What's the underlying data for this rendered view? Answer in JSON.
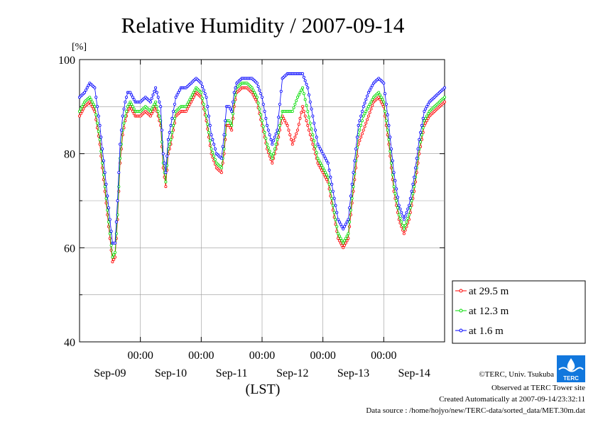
{
  "chart_data": {
    "type": "line",
    "title": "Relative Humidity / 2007-09-14",
    "ylabel": "[%]",
    "xlabel": "(LST)",
    "ylim": [
      40,
      100
    ],
    "xlim_hours": [
      0,
      144
    ],
    "y_ticks": [
      "40",
      "60",
      "80",
      "100"
    ],
    "y_tick_values": [
      40,
      60,
      80,
      100
    ],
    "x_time_ticks": [
      "00:00",
      "00:00",
      "00:00",
      "00:00",
      "00:00"
    ],
    "x_date_labels": [
      "Sep-09",
      "Sep-10",
      "Sep-11",
      "Sep-12",
      "Sep-13",
      "Sep-14"
    ],
    "grid": true,
    "legend_position": "right-bottom, outside plot",
    "series": [
      {
        "name": "at 29.5 m",
        "color": "#ff0000",
        "x": [
          0,
          2,
          4,
          6,
          8,
          10,
          12,
          13,
          14,
          15,
          16,
          17,
          18,
          19,
          20,
          22,
          24,
          26,
          28,
          30,
          32,
          33,
          34,
          35,
          36,
          37,
          38,
          40,
          42,
          44,
          46,
          48,
          50,
          52,
          54,
          56,
          57,
          58,
          59,
          60,
          61,
          62,
          64,
          66,
          68,
          70,
          72,
          74,
          76,
          78,
          80,
          82,
          84,
          86,
          88,
          90,
          92,
          94,
          96,
          98,
          100,
          102,
          104,
          106,
          108,
          110,
          112,
          114,
          116,
          118,
          120,
          122,
          124,
          126,
          128,
          130,
          132,
          134,
          136,
          138,
          140,
          142,
          144
        ],
        "values": [
          88,
          90,
          91,
          89,
          82,
          72,
          62,
          57,
          58,
          66,
          78,
          84,
          87,
          89,
          90,
          88,
          88,
          89,
          88,
          90,
          86,
          77,
          73,
          80,
          82,
          85,
          88,
          89,
          89,
          91,
          93,
          92,
          87,
          80,
          77,
          76,
          80,
          86,
          86,
          85,
          90,
          93,
          94,
          94,
          93,
          91,
          86,
          81,
          78,
          82,
          88,
          86,
          82,
          85,
          90,
          86,
          82,
          78,
          76,
          74,
          68,
          62,
          60,
          62,
          72,
          82,
          85,
          88,
          91,
          92,
          90,
          82,
          72,
          66,
          63,
          66,
          72,
          80,
          86,
          88,
          89,
          90,
          91
        ]
      },
      {
        "name": "at 12.3 m",
        "color": "#00dd00",
        "x": [
          0,
          2,
          4,
          6,
          8,
          10,
          12,
          13,
          14,
          15,
          16,
          17,
          18,
          19,
          20,
          22,
          24,
          26,
          28,
          30,
          32,
          33,
          34,
          35,
          36,
          37,
          38,
          40,
          42,
          44,
          46,
          48,
          50,
          52,
          54,
          56,
          57,
          58,
          59,
          60,
          61,
          62,
          64,
          66,
          68,
          70,
          72,
          74,
          76,
          78,
          80,
          82,
          84,
          86,
          88,
          90,
          92,
          94,
          96,
          98,
          100,
          102,
          104,
          106,
          108,
          110,
          112,
          114,
          116,
          118,
          120,
          122,
          124,
          126,
          128,
          130,
          132,
          134,
          136,
          138,
          140,
          142,
          144
        ],
        "values": [
          89,
          91,
          92,
          90,
          83,
          73,
          63,
          58,
          59,
          67,
          79,
          85,
          88,
          90,
          91,
          89,
          89,
          90,
          89,
          91,
          87,
          78,
          74,
          81,
          83,
          86,
          89,
          90,
          90,
          92,
          94,
          93,
          88,
          81,
          78,
          77,
          81,
          87,
          87,
          86,
          91,
          94,
          95,
          95,
          94,
          92,
          87,
          82,
          79,
          83,
          89,
          89,
          89,
          92,
          94,
          89,
          84,
          79,
          77,
          75,
          69,
          63,
          61,
          63,
          73,
          84,
          88,
          90,
          92,
          93,
          91,
          83,
          73,
          67,
          64,
          67,
          73,
          81,
          87,
          89,
          90,
          91,
          92
        ]
      },
      {
        "name": "at 1.6 m",
        "color": "#0000ff",
        "x": [
          0,
          2,
          4,
          6,
          8,
          10,
          12,
          13,
          14,
          15,
          16,
          17,
          18,
          19,
          20,
          22,
          24,
          26,
          28,
          30,
          32,
          33,
          34,
          35,
          36,
          37,
          38,
          40,
          42,
          44,
          46,
          48,
          50,
          52,
          54,
          56,
          57,
          58,
          59,
          60,
          61,
          62,
          64,
          66,
          68,
          70,
          72,
          74,
          76,
          78,
          80,
          82,
          84,
          86,
          88,
          90,
          92,
          94,
          96,
          98,
          100,
          102,
          104,
          106,
          108,
          110,
          112,
          114,
          116,
          118,
          120,
          122,
          124,
          126,
          128,
          130,
          132,
          134,
          136,
          138,
          140,
          142,
          144
        ],
        "values": [
          92,
          93,
          95,
          94,
          86,
          76,
          66,
          61,
          61,
          70,
          82,
          88,
          91,
          93,
          93,
          91,
          91,
          92,
          91,
          94,
          90,
          80,
          76,
          83,
          86,
          89,
          92,
          94,
          94,
          95,
          96,
          95,
          92,
          84,
          80,
          79,
          84,
          90,
          90,
          89,
          93,
          95,
          96,
          96,
          96,
          95,
          92,
          86,
          82,
          85,
          96,
          97,
          97,
          97,
          97,
          94,
          88,
          82,
          80,
          78,
          72,
          66,
          64,
          66,
          76,
          86,
          90,
          93,
          95,
          96,
          95,
          86,
          76,
          69,
          66,
          69,
          75,
          83,
          89,
          91,
          92,
          93,
          94
        ]
      }
    ],
    "credits": [
      "©TERC, Univ. Tsukuba",
      "Observed at TERC Tower site",
      "Created Automatically at 2007-09-14/23:32:11",
      "Data source : /home/hojyo/new/TERC-data/sorted_data/MET.30m.dat"
    ],
    "logo_text": "TERC"
  }
}
